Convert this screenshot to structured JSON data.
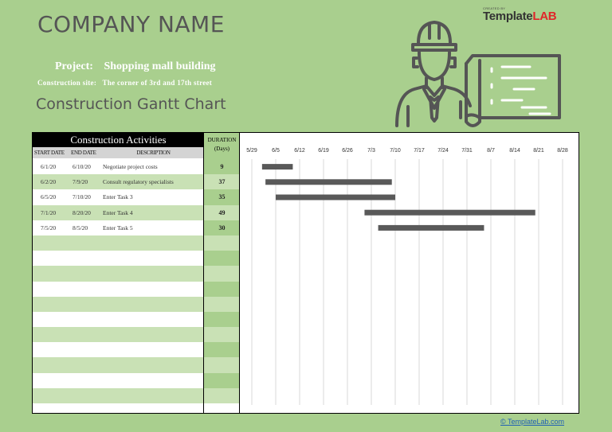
{
  "company": "COMPANY NAME",
  "project_label": "Project:",
  "project_value": "Shopping mall building",
  "site_label": "Construction site:",
  "site_value": "The corner of 3rd and 17th street",
  "gantt_title": "Construction Gantt Chart",
  "brand_small": "CREATED BY",
  "brand_name_a": "Template",
  "brand_name_b": "LAB",
  "footer_link": "© TemplateLab.com",
  "table": {
    "title": "Construction Activities",
    "col_start": "START DATE",
    "col_end": "END DATE",
    "col_desc": "DESCRIPTION",
    "duration_line1": "DURATION",
    "duration_line2": "(Days)",
    "rows": [
      {
        "start": "6/1/20",
        "end": "6/10/20",
        "desc": "Negotiate project costs",
        "dur": "9"
      },
      {
        "start": "6/2/20",
        "end": "7/9/20",
        "desc": "Consult regulatory specialists",
        "dur": "37"
      },
      {
        "start": "6/5/20",
        "end": "7/10/20",
        "desc": "Enter Task 3",
        "dur": "35"
      },
      {
        "start": "7/1/20",
        "end": "8/20/20",
        "desc": "Enter Task 4",
        "dur": "49"
      },
      {
        "start": "7/5/20",
        "end": "8/5/20",
        "desc": "Enter Task 5",
        "dur": "30"
      },
      {
        "start": "",
        "end": "",
        "desc": "",
        "dur": ""
      },
      {
        "start": "",
        "end": "",
        "desc": "",
        "dur": ""
      },
      {
        "start": "",
        "end": "",
        "desc": "",
        "dur": ""
      },
      {
        "start": "",
        "end": "",
        "desc": "",
        "dur": ""
      },
      {
        "start": "",
        "end": "",
        "desc": "",
        "dur": ""
      },
      {
        "start": "",
        "end": "",
        "desc": "",
        "dur": ""
      },
      {
        "start": "",
        "end": "",
        "desc": "",
        "dur": ""
      },
      {
        "start": "",
        "end": "",
        "desc": "",
        "dur": ""
      },
      {
        "start": "",
        "end": "",
        "desc": "",
        "dur": ""
      },
      {
        "start": "",
        "end": "",
        "desc": "",
        "dur": ""
      },
      {
        "start": "",
        "end": "",
        "desc": "",
        "dur": ""
      }
    ]
  },
  "chart_data": {
    "type": "bar",
    "orientation": "horizontal-gantt",
    "title": "Construction Gantt Chart",
    "xlabel": "",
    "ylabel": "",
    "x_ticks": [
      "5/29",
      "6/5",
      "6/12",
      "6/19",
      "6/26",
      "7/3",
      "7/10",
      "7/17",
      "7/24",
      "7/31",
      "8/7",
      "8/14",
      "8/21",
      "8/28"
    ],
    "xlim": [
      "2020-05-29",
      "2020-09-04"
    ],
    "tasks": [
      {
        "name": "Negotiate project costs",
        "start": "2020-06-01",
        "end": "2020-06-10",
        "duration": 9
      },
      {
        "name": "Consult regulatory specialists",
        "start": "2020-06-02",
        "end": "2020-07-09",
        "duration": 37
      },
      {
        "name": "Enter Task 3",
        "start": "2020-06-05",
        "end": "2020-07-10",
        "duration": 35
      },
      {
        "name": "Enter Task 4",
        "start": "2020-07-01",
        "end": "2020-08-20",
        "duration": 49
      },
      {
        "name": "Enter Task 5",
        "start": "2020-07-05",
        "end": "2020-08-05",
        "duration": 30
      }
    ],
    "grid": true,
    "legend": "none",
    "bar_color": "#595959"
  }
}
